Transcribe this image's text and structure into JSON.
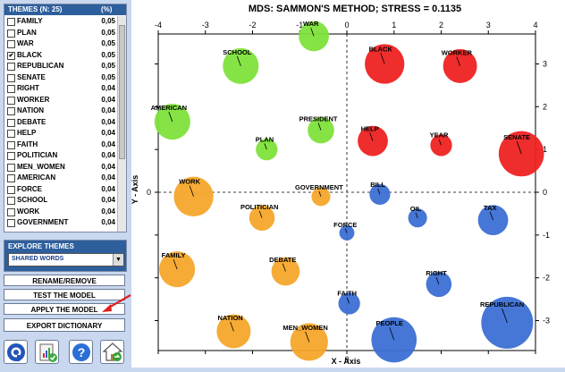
{
  "sidebar": {
    "header": {
      "title": "THEMES (N: 25)",
      "pct": "(%)"
    },
    "themes": [
      {
        "label": "FAMILY",
        "value": "0,05",
        "checked": false
      },
      {
        "label": "PLAN",
        "value": "0,05",
        "checked": false
      },
      {
        "label": "WAR",
        "value": "0,05",
        "checked": false
      },
      {
        "label": "BLACK",
        "value": "0,05",
        "checked": true
      },
      {
        "label": "REPUBLICAN",
        "value": "0,05",
        "checked": false
      },
      {
        "label": "SENATE",
        "value": "0,05",
        "checked": false
      },
      {
        "label": "RIGHT",
        "value": "0,04",
        "checked": false
      },
      {
        "label": "WORKER",
        "value": "0,04",
        "checked": false
      },
      {
        "label": "NATION",
        "value": "0,04",
        "checked": false
      },
      {
        "label": "DEBATE",
        "value": "0,04",
        "checked": false
      },
      {
        "label": "HELP",
        "value": "0,04",
        "checked": false
      },
      {
        "label": "FAITH",
        "value": "0,04",
        "checked": false
      },
      {
        "label": "POLITICIAN",
        "value": "0,04",
        "checked": false
      },
      {
        "label": "MEN_WOMEN",
        "value": "0,04",
        "checked": false
      },
      {
        "label": "AMERICAN",
        "value": "0,04",
        "checked": false
      },
      {
        "label": "FORCE",
        "value": "0,04",
        "checked": false
      },
      {
        "label": "SCHOOL",
        "value": "0,04",
        "checked": false
      },
      {
        "label": "WORK",
        "value": "0,04",
        "checked": false
      },
      {
        "label": "GOVERNMENT",
        "value": "0,04",
        "checked": false
      }
    ],
    "explore": {
      "title": "EXPLORE THEMES",
      "selected": "SHARED WORDS"
    },
    "buttons": {
      "rename": "RENAME/REMOVE",
      "test": "TEST THE MODEL",
      "apply": "APPLY THE MODEL",
      "export": "EXPORT DICTIONARY"
    },
    "icons": [
      "q-logo-icon",
      "report-chart-icon",
      "help-icon",
      "home-icon"
    ]
  },
  "chart_data": {
    "type": "scatter",
    "title": "MDS: SAMMON'S METHOD; STRESS = 0.1135",
    "xlabel": "X - Axis",
    "ylabel": "Y - Axis",
    "xlim": [
      -4,
      4
    ],
    "ylim": [
      -3.7,
      3.7
    ],
    "xticks": [
      -4,
      -3,
      -2,
      -1,
      0,
      1,
      2,
      3,
      4
    ],
    "yticks": [
      -3,
      -2,
      -1,
      0,
      1,
      2,
      3
    ],
    "cluster_colors": {
      "green": "#7ee23b",
      "red": "#ee2222",
      "orange": "#f4a62a",
      "blue": "#3c6fd4"
    },
    "points": [
      {
        "label": "WAR",
        "x": -0.7,
        "y": 3.65,
        "r": 0.32,
        "cluster": "green"
      },
      {
        "label": "SCHOOL",
        "x": -2.25,
        "y": 2.95,
        "r": 0.38,
        "cluster": "green"
      },
      {
        "label": "AMERICAN",
        "x": -3.7,
        "y": 1.65,
        "r": 0.38,
        "cluster": "green"
      },
      {
        "label": "PRESIDENT",
        "x": -0.55,
        "y": 1.45,
        "r": 0.28,
        "cluster": "green"
      },
      {
        "label": "PLAN",
        "x": -1.7,
        "y": 1.0,
        "r": 0.23,
        "cluster": "green"
      },
      {
        "label": "BLACK",
        "x": 0.8,
        "y": 3.0,
        "r": 0.42,
        "cluster": "red"
      },
      {
        "label": "WORKER",
        "x": 2.4,
        "y": 2.95,
        "r": 0.36,
        "cluster": "red"
      },
      {
        "label": "HELP",
        "x": 0.55,
        "y": 1.2,
        "r": 0.32,
        "cluster": "red"
      },
      {
        "label": "YEAR",
        "x": 2.0,
        "y": 1.1,
        "r": 0.23,
        "cluster": "red"
      },
      {
        "label": "SENATE",
        "x": 3.7,
        "y": 0.9,
        "r": 0.48,
        "cluster": "red"
      },
      {
        "label": "WORK",
        "x": -3.25,
        "y": -0.1,
        "r": 0.42,
        "cluster": "orange"
      },
      {
        "label": "GOVERNMENT",
        "x": -0.55,
        "y": -0.1,
        "r": 0.2,
        "cluster": "orange"
      },
      {
        "label": "POLITICIAN",
        "x": -1.8,
        "y": -0.6,
        "r": 0.27,
        "cluster": "orange"
      },
      {
        "label": "FAMILY",
        "x": -3.6,
        "y": -1.8,
        "r": 0.38,
        "cluster": "orange"
      },
      {
        "label": "DEBATE",
        "x": -1.3,
        "y": -1.85,
        "r": 0.3,
        "cluster": "orange"
      },
      {
        "label": "NATION",
        "x": -2.4,
        "y": -3.25,
        "r": 0.36,
        "cluster": "orange"
      },
      {
        "label": "MEN_WOMEN",
        "x": -0.8,
        "y": -3.5,
        "r": 0.4,
        "cluster": "orange"
      },
      {
        "label": "BILL",
        "x": 0.7,
        "y": -0.05,
        "r": 0.22,
        "cluster": "blue"
      },
      {
        "label": "OIL",
        "x": 1.5,
        "y": -0.6,
        "r": 0.2,
        "cluster": "blue"
      },
      {
        "label": "TAX",
        "x": 3.1,
        "y": -0.65,
        "r": 0.32,
        "cluster": "blue"
      },
      {
        "label": "FORCE",
        "x": 0.0,
        "y": -0.95,
        "r": 0.16,
        "cluster": "blue"
      },
      {
        "label": "RIGHT",
        "x": 1.95,
        "y": -2.15,
        "r": 0.27,
        "cluster": "blue"
      },
      {
        "label": "FAITH",
        "x": 0.05,
        "y": -2.6,
        "r": 0.23,
        "cluster": "blue"
      },
      {
        "label": "PEOPLE",
        "x": 1.0,
        "y": -3.45,
        "r": 0.48,
        "cluster": "blue"
      },
      {
        "label": "REPUBLICAN",
        "x": 3.4,
        "y": -3.05,
        "r": 0.55,
        "cluster": "blue"
      }
    ]
  }
}
